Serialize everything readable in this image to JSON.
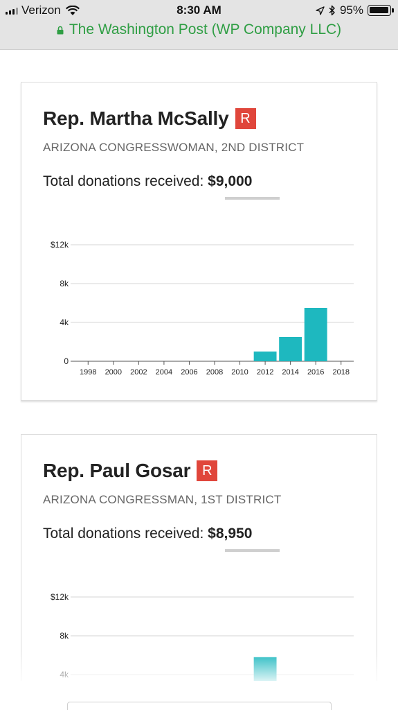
{
  "status_bar": {
    "carrier": "Verizon",
    "time": "8:30 AM",
    "battery_percent": "95%",
    "battery_level": 0.95,
    "url_title": "The Washington Post (WP Company LLC)"
  },
  "cards": [
    {
      "name": "Rep. Martha McSally",
      "party": "R",
      "description": "ARIZONA CONGRESSWOMAN, 2ND DISTRICT",
      "donations_label": "Total donations received:",
      "donations_value": "$9,000",
      "colors": {
        "bar": "#1eb8bf",
        "badge": "#e0463b"
      }
    },
    {
      "name": "Rep. Paul Gosar",
      "party": "R",
      "description": "ARIZONA CONGRESSMAN, 1ST DISTRICT",
      "donations_label": "Total donations received:",
      "donations_value": "$8,950",
      "colors": {
        "bar": "#1eb8bf",
        "badge": "#e0463b"
      }
    }
  ],
  "chart_data": [
    {
      "type": "bar",
      "y_ticks": [
        "$12k",
        "8k",
        "4k",
        "0"
      ],
      "y_tick_values": [
        12000,
        8000,
        4000,
        0
      ],
      "x_ticks": [
        "1998",
        "2000",
        "2002",
        "2004",
        "2006",
        "2008",
        "2010",
        "2012",
        "2014",
        "2016",
        "2018"
      ],
      "x_tick_values": [
        1998,
        2000,
        2002,
        2004,
        2006,
        2008,
        2010,
        2012,
        2014,
        2016,
        2018
      ],
      "xlim": [
        1997,
        2019
      ],
      "ylim": [
        0,
        12000
      ],
      "bars": [
        {
          "x": 2012,
          "value": 1000
        },
        {
          "x": 2014,
          "value": 2500
        },
        {
          "x": 2016,
          "value": 5500
        }
      ]
    },
    {
      "type": "bar",
      "y_ticks": [
        "$12k",
        "8k",
        "4k"
      ],
      "y_tick_values": [
        12000,
        8000,
        4000
      ],
      "xlim": [
        1997,
        2019
      ],
      "ylim": [
        0,
        12000
      ],
      "bars": [
        {
          "x": 2012,
          "value": 5800
        }
      ]
    }
  ]
}
